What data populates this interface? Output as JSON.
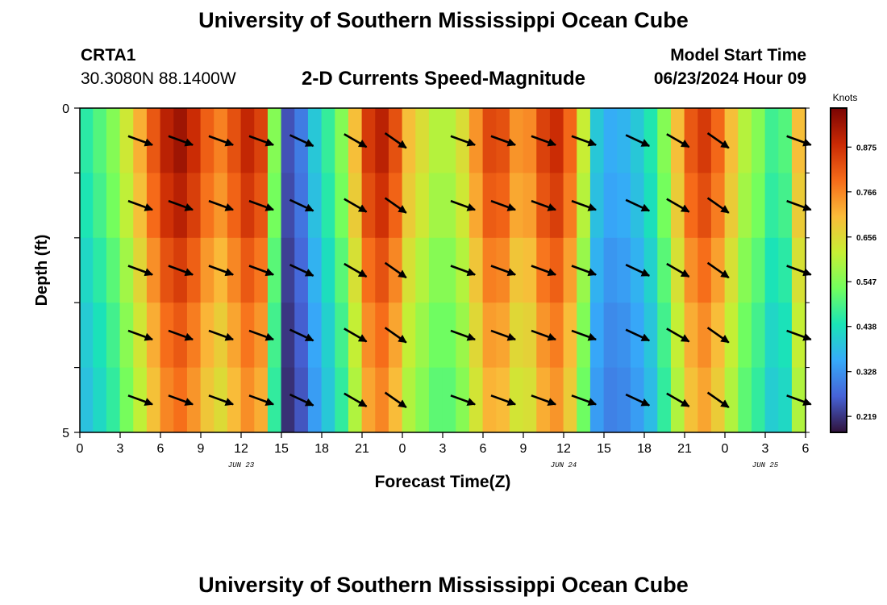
{
  "page": {
    "title_top": "University of Southern Mississippi Ocean Cube",
    "title_bottom": "University of Southern Mississippi Ocean Cube",
    "station_id": "CRTA1",
    "station_coords": "30.3080N  88.1400W",
    "subtitle": "2-D Currents Speed-Magnitude",
    "model_start_label": "Model Start Time",
    "model_start_value": "06/23/2024 Hour 09"
  },
  "chart_data": {
    "type": "heatmap",
    "title": "2-D Currents Speed-Magnitude",
    "xlabel": "Forecast Time(Z)",
    "ylabel": "Depth (ft)",
    "x_range": [
      0,
      54
    ],
    "y_range": [
      0,
      5
    ],
    "x_ticks": [
      "0",
      "3",
      "6",
      "9",
      "12",
      "15",
      "18",
      "21",
      "0",
      "3",
      "6",
      "9",
      "12",
      "15",
      "18",
      "21",
      "0",
      "3",
      "6"
    ],
    "date_labels": [
      {
        "label": "JUN 23",
        "hour": 12
      },
      {
        "label": "JUN 24",
        "hour": 36
      },
      {
        "label": "JUN 25",
        "hour": 51
      }
    ],
    "y_tick_labels": [
      {
        "value": 0,
        "label": "0"
      },
      {
        "value": 1,
        "label": ""
      },
      {
        "value": 2,
        "label": ""
      },
      {
        "value": 3,
        "label": ""
      },
      {
        "value": 4,
        "label": ""
      },
      {
        "value": 5,
        "label": "5"
      }
    ],
    "colorbar": {
      "label": "Knots",
      "min": 0.18,
      "max": 0.97,
      "ticks": [
        "0.219",
        "0.328",
        "0.438",
        "0.547",
        "0.656",
        "0.766",
        "0.875"
      ],
      "colors": [
        "#30123b",
        "#4662d7",
        "#36aaf9",
        "#1ae4b6",
        "#72fe5e",
        "#c7ef34",
        "#fabb39",
        "#f66b19",
        "#ca2a04",
        "#7a0403"
      ]
    },
    "hours": [
      0,
      1,
      2,
      3,
      4,
      5,
      6,
      7,
      8,
      9,
      10,
      11,
      12,
      13,
      14,
      15,
      16,
      17,
      18,
      19,
      20,
      21,
      22,
      23,
      24,
      25,
      26,
      27,
      28,
      29,
      30,
      31,
      32,
      33,
      34,
      35,
      36,
      37,
      38,
      39,
      40,
      41,
      42,
      43,
      44,
      45,
      46,
      47,
      48,
      49,
      50,
      51,
      52,
      53
    ],
    "surface_speed": [
      0.46,
      0.5,
      0.55,
      0.63,
      0.72,
      0.82,
      0.9,
      0.93,
      0.88,
      0.81,
      0.77,
      0.83,
      0.89,
      0.85,
      0.55,
      0.25,
      0.3,
      0.4,
      0.47,
      0.55,
      0.7,
      0.86,
      0.9,
      0.83,
      0.7,
      0.65,
      0.6,
      0.6,
      0.65,
      0.75,
      0.84,
      0.83,
      0.75,
      0.76,
      0.85,
      0.88,
      0.8,
      0.62,
      0.4,
      0.36,
      0.37,
      0.4,
      0.45,
      0.55,
      0.7,
      0.82,
      0.86,
      0.8,
      0.7,
      0.6,
      0.55,
      0.48,
      0.5,
      0.7
    ],
    "depth_factor": [
      1.0,
      0.97,
      0.92,
      0.88,
      0.85
    ],
    "arrows": [
      {
        "hour": 4,
        "angle_deg": -20
      },
      {
        "hour": 7,
        "angle_deg": -20
      },
      {
        "hour": 10,
        "angle_deg": -20
      },
      {
        "hour": 13,
        "angle_deg": -20
      },
      {
        "hour": 16,
        "angle_deg": -25
      },
      {
        "hour": 20,
        "angle_deg": -30
      },
      {
        "hour": 23,
        "angle_deg": -35
      },
      {
        "hour": 28,
        "angle_deg": -20
      },
      {
        "hour": 31,
        "angle_deg": -20
      },
      {
        "hour": 34,
        "angle_deg": -20
      },
      {
        "hour": 37,
        "angle_deg": -20
      },
      {
        "hour": 41,
        "angle_deg": -25
      },
      {
        "hour": 44,
        "angle_deg": -30
      },
      {
        "hour": 47,
        "angle_deg": -35
      },
      {
        "hour": 53,
        "angle_deg": -20
      }
    ]
  }
}
